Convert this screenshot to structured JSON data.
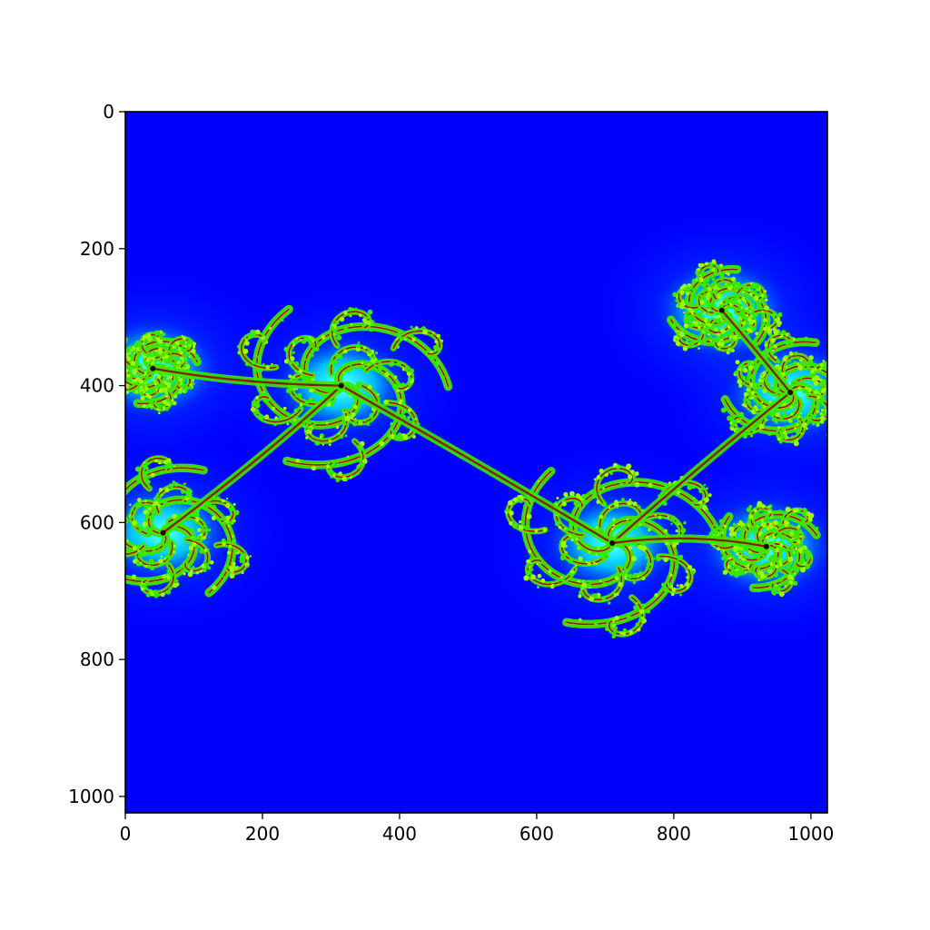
{
  "chart_data": {
    "type": "heatmap",
    "title": "",
    "xlabel": "",
    "ylabel": "",
    "xlim": [
      0,
      1024
    ],
    "ylim": [
      1024,
      0
    ],
    "y_inverted": true,
    "grid": false,
    "x_ticks": [
      0,
      200,
      400,
      600,
      800,
      1000
    ],
    "y_ticks": [
      0,
      200,
      400,
      600,
      800,
      1000
    ],
    "x_tick_labels": [
      "0",
      "200",
      "400",
      "600",
      "800",
      "1000"
    ],
    "y_tick_labels": [
      "0",
      "200",
      "400",
      "600",
      "800",
      "1000"
    ],
    "colormap": "jet",
    "colors": {
      "background": "#0000ff",
      "halo": "#0060ff",
      "glow": "#00e8ff",
      "fringe": "#38e800",
      "filament": "#8a1a00",
      "core": "#200000"
    },
    "spiral_centers": [
      {
        "x": 315,
        "y": 400
      },
      {
        "x": 55,
        "y": 615
      },
      {
        "x": 710,
        "y": 630
      },
      {
        "x": 970,
        "y": 410
      },
      {
        "x": 40,
        "y": 375
      },
      {
        "x": 870,
        "y": 290
      },
      {
        "x": 935,
        "y": 635
      }
    ]
  }
}
